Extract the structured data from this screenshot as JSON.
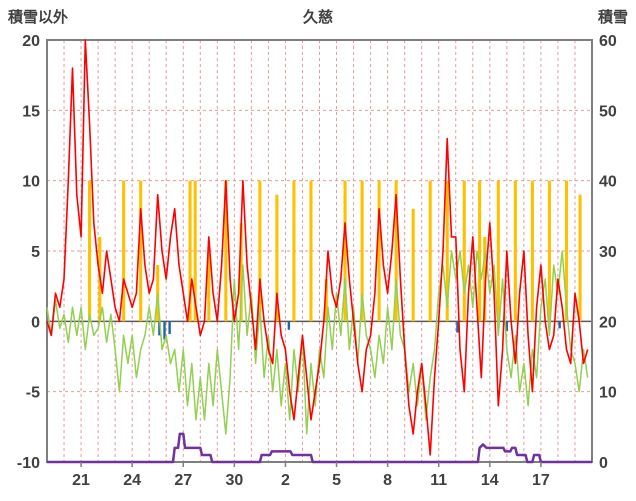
{
  "chart_data": {
    "type": "line",
    "title": "久慈",
    "left_axis": {
      "label": "積雪以外",
      "min": -10,
      "max": 20,
      "ticks": [
        20,
        15,
        10,
        5,
        0,
        -5,
        -10
      ]
    },
    "right_axis": {
      "label": "積雪",
      "min": 0,
      "max": 60,
      "ticks": [
        60,
        50,
        40,
        30,
        20,
        10,
        0
      ]
    },
    "x_axis": {
      "min": 0,
      "max": 32,
      "tick_positions": [
        2,
        5,
        8,
        11,
        14,
        17,
        20,
        23,
        26,
        29
      ],
      "tick_labels": [
        "21",
        "24",
        "27",
        "30",
        "2",
        "5",
        "8",
        "11",
        "14",
        "17"
      ],
      "minor_grid_step": 1
    },
    "grid": {
      "color": "#E08A8A",
      "dash": "3 3",
      "horizontal_values": [
        15,
        10,
        5,
        -5
      ]
    },
    "frame_color": "#7F7F7F",
    "zero_line_color": "#595959",
    "text_color": "#404040",
    "series": [
      {
        "name": "orange-bars",
        "color": "#FFC000",
        "axis": "left",
        "type": "bar",
        "bar_width": 0.18,
        "points": [
          [
            2.5,
            10
          ],
          [
            3.1,
            6
          ],
          [
            4.5,
            10
          ],
          [
            5.5,
            10
          ],
          [
            6.5,
            4
          ],
          [
            8.4,
            10
          ],
          [
            8.7,
            10
          ],
          [
            9.5,
            5
          ],
          [
            10.5,
            10
          ],
          [
            11.4,
            7
          ],
          [
            12.5,
            10
          ],
          [
            13.5,
            9
          ],
          [
            14.5,
            10
          ],
          [
            15.5,
            10
          ],
          [
            16.4,
            3
          ],
          [
            17.5,
            10
          ],
          [
            18.5,
            10
          ],
          [
            19.5,
            10
          ],
          [
            20.5,
            10
          ],
          [
            21.5,
            8
          ],
          [
            22.5,
            10
          ],
          [
            23.5,
            10
          ],
          [
            24.5,
            10
          ],
          [
            25.4,
            10
          ],
          [
            25.7,
            6
          ],
          [
            26.5,
            10
          ],
          [
            27.5,
            10
          ],
          [
            28.5,
            10
          ],
          [
            29.5,
            10
          ],
          [
            30.5,
            10
          ],
          [
            31.3,
            9
          ]
        ]
      },
      {
        "name": "blue-bars",
        "color": "#1F63A8",
        "axis": "left",
        "type": "bar",
        "bar_width": 0.14,
        "points": [
          [
            6.6,
            -1
          ],
          [
            6.9,
            -1.3
          ],
          [
            7.2,
            -0.9
          ],
          [
            14.2,
            -0.6
          ],
          [
            24.1,
            -0.8
          ],
          [
            27.0,
            -0.7
          ],
          [
            30.1,
            -0.5
          ]
        ]
      },
      {
        "name": "green-line",
        "color": "#92D050",
        "axis": "left",
        "type": "line",
        "width": 1.5,
        "x0": 0,
        "dx": 0.25,
        "values": [
          1,
          -1,
          1.5,
          -0.5,
          0.5,
          -1.5,
          1,
          -1,
          1,
          -2,
          0.5,
          -1,
          -0.5,
          1,
          -1.5,
          0.5,
          -2,
          -5,
          -1,
          -3,
          -1,
          -4,
          -2,
          -1,
          1,
          -1,
          2,
          -2,
          -1,
          -3,
          -2,
          -5,
          -2,
          -6,
          -3,
          -7,
          -4,
          -7,
          -3,
          -6,
          -2,
          -5,
          -8,
          -4,
          3,
          -2,
          4,
          -1,
          2,
          -3,
          1,
          -4,
          -1,
          -5,
          -2,
          -6,
          -3,
          -7,
          -2,
          -5,
          -1,
          -8,
          -3,
          -6,
          -2,
          -4,
          1,
          -2,
          2,
          -1,
          3,
          -2,
          1,
          -3,
          2,
          -1,
          -2,
          -4,
          -1,
          -3,
          1,
          -2,
          3,
          -1,
          -2,
          -5,
          -3,
          -6,
          -3,
          -7,
          -4,
          -2,
          2,
          4,
          1,
          5,
          3,
          5,
          2,
          4,
          1,
          5,
          3,
          5,
          2,
          4,
          -1,
          3,
          -2,
          -4,
          -1,
          -5,
          -3,
          -6,
          -2,
          -4,
          1,
          3,
          -1,
          4,
          2,
          5,
          1,
          -2,
          -3,
          -5,
          -2,
          -4
        ]
      },
      {
        "name": "red-line",
        "color": "#FF0000",
        "axis": "left",
        "type": "line",
        "width": 1.6,
        "x0": 0,
        "dx": 0.25,
        "values": [
          0,
          -1,
          2,
          1,
          3,
          10,
          18,
          9,
          6,
          20,
          14,
          7,
          4,
          2,
          5,
          3,
          1,
          0,
          3,
          2,
          1,
          2,
          8,
          4,
          2,
          3,
          9,
          5,
          3,
          6,
          8,
          4,
          2,
          0,
          3,
          1,
          -1,
          0,
          6,
          2,
          0,
          4,
          10,
          3,
          0,
          2,
          10,
          4,
          1,
          -2,
          3,
          0,
          -2,
          -3,
          2,
          -1,
          -2,
          -5,
          -7,
          -4,
          -1,
          -4,
          -7,
          -5,
          -3,
          0,
          5,
          2,
          1,
          3,
          7,
          3,
          0,
          -3,
          -5,
          -2,
          -1,
          2,
          8,
          4,
          2,
          5,
          9,
          3,
          -2,
          -6,
          -8,
          -5,
          -3,
          -6,
          -9.5,
          -4,
          0,
          5,
          13,
          6,
          6,
          -2,
          -5,
          2,
          6,
          1,
          -4,
          3,
          7,
          2,
          -6,
          -2,
          5,
          0,
          -3,
          2,
          5,
          -1,
          -5,
          1,
          4,
          0,
          -2,
          -1,
          3,
          1,
          -2,
          -3,
          2,
          0,
          -3,
          -2
        ]
      },
      {
        "name": "purple-line",
        "color": "#7030A0",
        "axis": "right",
        "type": "line",
        "width": 2.5,
        "points": [
          [
            0,
            0
          ],
          [
            7.4,
            0
          ],
          [
            7.5,
            2
          ],
          [
            7.7,
            2
          ],
          [
            7.8,
            4
          ],
          [
            8.0,
            4
          ],
          [
            8.1,
            2
          ],
          [
            9.0,
            2
          ],
          [
            9.1,
            1
          ],
          [
            9.6,
            1
          ],
          [
            9.7,
            0
          ],
          [
            12.5,
            0
          ],
          [
            12.6,
            1
          ],
          [
            13.1,
            1
          ],
          [
            13.2,
            1.5
          ],
          [
            14.3,
            1.5
          ],
          [
            14.4,
            1
          ],
          [
            15.5,
            1
          ],
          [
            15.6,
            0
          ],
          [
            25.3,
            0
          ],
          [
            25.4,
            2
          ],
          [
            25.6,
            2.5
          ],
          [
            25.8,
            2
          ],
          [
            26.8,
            2
          ],
          [
            26.9,
            1.5
          ],
          [
            27.2,
            1.5
          ],
          [
            27.3,
            2
          ],
          [
            27.5,
            2
          ],
          [
            27.6,
            1
          ],
          [
            28.1,
            1
          ],
          [
            28.2,
            0
          ],
          [
            28.5,
            0
          ],
          [
            28.6,
            1
          ],
          [
            28.9,
            1
          ],
          [
            29.0,
            0
          ],
          [
            32,
            0
          ]
        ]
      }
    ]
  }
}
